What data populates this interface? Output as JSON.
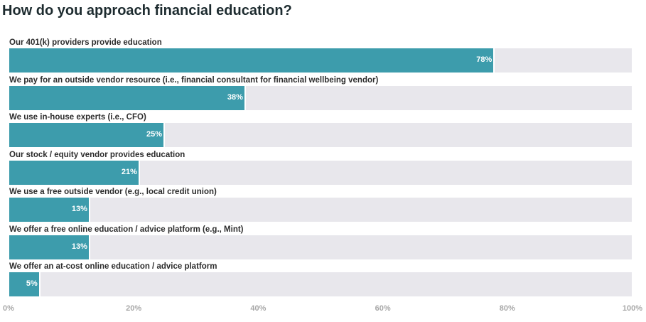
{
  "chart_data": {
    "type": "bar",
    "orientation": "horizontal",
    "title": "How do you approach financial education?",
    "categories": [
      "Our 401(k) providers provide education",
      "We pay for an outside vendor resource (i.e., financial consultant for financial wellbeing vendor)",
      "We use in-house experts (i.e., CFO)",
      "Our stock / equity vendor provides education",
      "We use a free outside vendor (e.g., local credit union)",
      "We offer a free online education / advice platform (e.g., Mint)",
      "We offer an at-cost online education / advice platform"
    ],
    "values": [
      78,
      38,
      25,
      21,
      13,
      13,
      5
    ],
    "value_labels": [
      "78%",
      "38%",
      "25%",
      "21%",
      "13%",
      "13%",
      "5%"
    ],
    "xlim": [
      0,
      100
    ],
    "xticks": [
      "0%",
      "20%",
      "40%",
      "60%",
      "80%",
      "100%"
    ],
    "xtick_values": [
      0,
      20,
      40,
      60,
      80,
      100
    ],
    "xlabel": "",
    "ylabel": "",
    "colors": {
      "bar": "#3d9cac",
      "track": "#e8e7ec"
    }
  }
}
